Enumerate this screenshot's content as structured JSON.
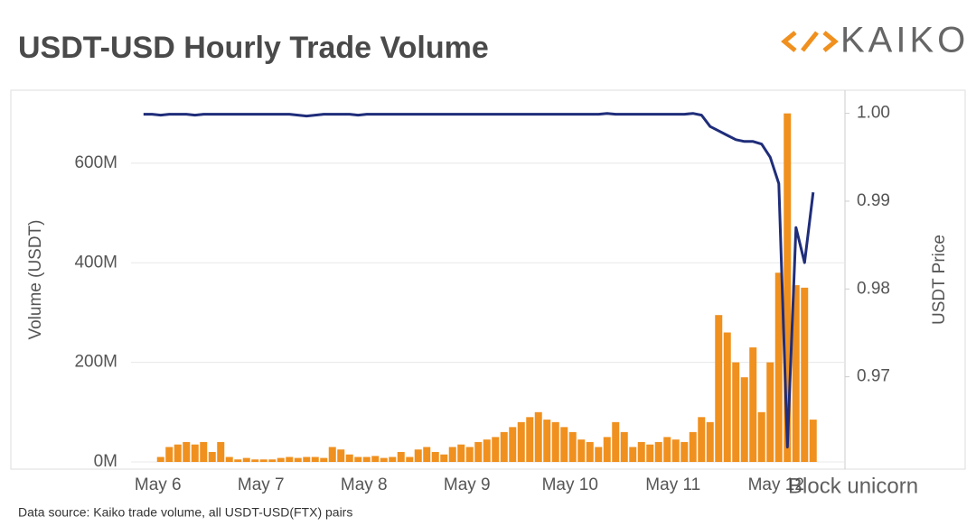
{
  "chart_data": {
    "type": "bar",
    "title": "USDT-USD Hourly Trade Volume",
    "brand": "KAIKO",
    "source": "Data source: Kaiko trade volume, all USDT-USD(FTX) pairs",
    "watermark": "Block unicorn",
    "ylabel": "Volume (USDT)",
    "y2label": "USDT Price",
    "categories": [
      "May 6",
      null,
      null,
      null,
      null,
      null,
      null,
      null,
      null,
      null,
      null,
      null,
      "May 7",
      null,
      null,
      null,
      null,
      null,
      null,
      null,
      null,
      null,
      null,
      null,
      "May 8",
      null,
      null,
      null,
      null,
      null,
      null,
      null,
      null,
      null,
      null,
      null,
      "May 9",
      null,
      null,
      null,
      null,
      null,
      null,
      null,
      null,
      null,
      null,
      null,
      "May 10",
      null,
      null,
      null,
      null,
      null,
      null,
      null,
      null,
      null,
      null,
      null,
      "May 11",
      null,
      null,
      null,
      null,
      null,
      null,
      null,
      null,
      null,
      null,
      null,
      "May 12",
      null,
      null,
      null,
      null,
      null,
      null
    ],
    "series": [
      {
        "type": "bar",
        "color": "#f0901e",
        "values": [
          0,
          0,
          10,
          30,
          35,
          40,
          35,
          40,
          20,
          40,
          10,
          5,
          8,
          5,
          5,
          5,
          8,
          10,
          8,
          10,
          10,
          8,
          30,
          25,
          15,
          10,
          10,
          12,
          8,
          10,
          20,
          10,
          25,
          30,
          20,
          15,
          30,
          35,
          30,
          40,
          45,
          50,
          60,
          70,
          80,
          90,
          100,
          85,
          80,
          70,
          60,
          45,
          40,
          30,
          50,
          80,
          60,
          30,
          40,
          35,
          40,
          50,
          45,
          40,
          60,
          90,
          80,
          295,
          260,
          200,
          170,
          230,
          100,
          200,
          380,
          700,
          355,
          350,
          85
        ]
      },
      {
        "type": "line",
        "axis": "y2",
        "color": "#1f2d7a",
        "values": [
          0.9999,
          0.9999,
          0.9998,
          0.9999,
          0.9999,
          0.9999,
          0.9998,
          0.9999,
          0.9999,
          0.9999,
          0.9999,
          0.9999,
          0.9999,
          0.9999,
          0.9999,
          0.9999,
          0.9999,
          0.9999,
          0.9998,
          0.9997,
          0.9998,
          0.9999,
          0.9999,
          0.9999,
          0.9999,
          0.9998,
          0.9999,
          0.9999,
          0.9999,
          0.9999,
          0.9999,
          0.9999,
          0.9999,
          0.9999,
          0.9999,
          0.9999,
          0.9999,
          0.9999,
          0.9999,
          0.9999,
          0.9999,
          0.9999,
          0.9999,
          0.9999,
          0.9999,
          0.9999,
          0.9999,
          0.9999,
          0.9999,
          0.9999,
          0.9999,
          0.9999,
          0.9999,
          0.9999,
          1.0,
          0.9999,
          0.9999,
          0.9999,
          0.9999,
          0.9999,
          0.9999,
          0.9999,
          0.9999,
          0.9999,
          1.0,
          0.9998,
          0.9985,
          0.998,
          0.9975,
          0.997,
          0.9968,
          0.9968,
          0.9965,
          0.995,
          0.992,
          0.962,
          0.987,
          0.983,
          0.991
        ]
      }
    ],
    "ylim": [
      0,
      723
    ],
    "yticks": [
      {
        "value": 0,
        "label": "0M"
      },
      {
        "value": 200,
        "label": "200M"
      },
      {
        "value": 400,
        "label": "400M"
      },
      {
        "value": 600,
        "label": "600M"
      }
    ],
    "y2lim": [
      0.9603,
      1.0013
    ],
    "y2ticks": [
      0.97,
      0.98,
      0.99,
      {
        "value": 1,
        "label": "1.00"
      }
    ],
    "grid": true
  }
}
